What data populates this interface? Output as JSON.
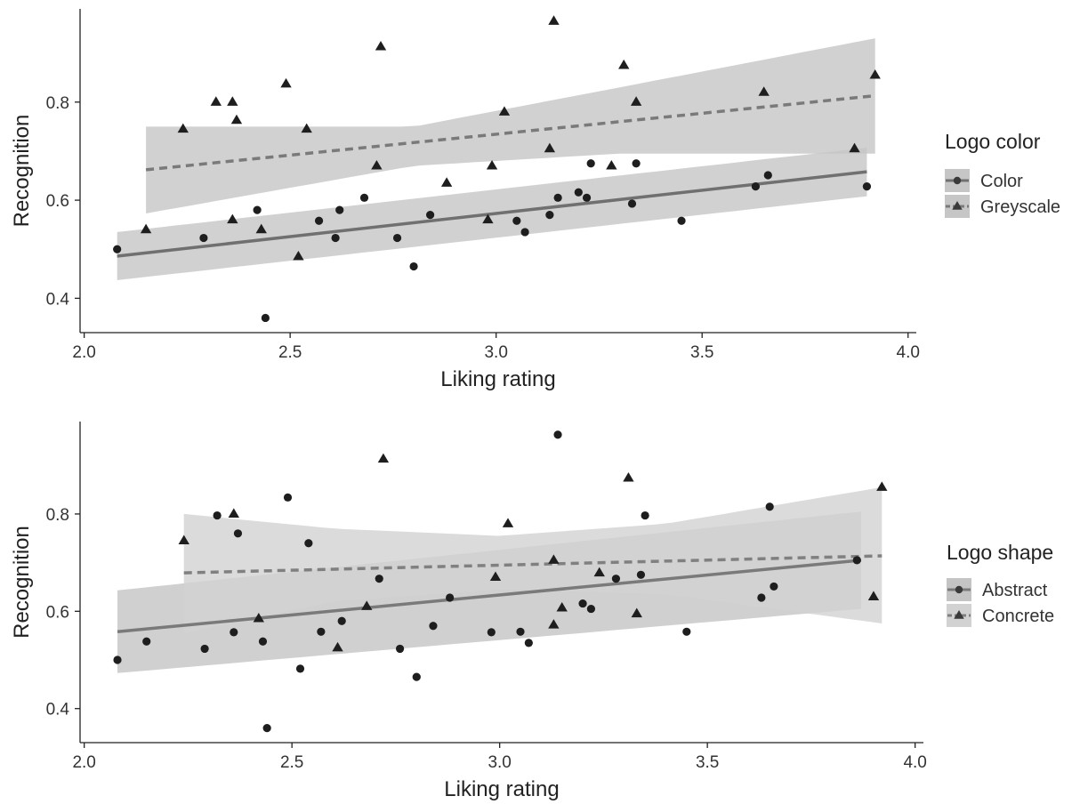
{
  "chart_data": [
    {
      "type": "scatter",
      "title": "",
      "xlabel": "Liking rating",
      "ylabel": "Recognition",
      "xlim": [
        1.99,
        4.02
      ],
      "ylim": [
        0.33,
        0.99
      ],
      "xticks": [
        2.0,
        2.5,
        3.0,
        3.5,
        4.0
      ],
      "xtick_labels": [
        "2.0",
        "2.5",
        "3.0",
        "3.5",
        "4.0"
      ],
      "yticks": [
        0.4,
        0.6,
        0.8
      ],
      "ytick_labels": [
        "0.4",
        "0.6",
        "0.8"
      ],
      "grid": false,
      "legend": {
        "title": "Logo color",
        "placement": "right"
      },
      "series": [
        {
          "name": "Color",
          "marker": "circle",
          "line_style": "solid",
          "line_color": "#707070",
          "band_color": "#c6c6c6",
          "fit": {
            "x": [
              2.08,
              3.9
            ],
            "y": [
              0.486,
              0.658
            ]
          },
          "band": {
            "x": [
              2.08,
              3.9
            ],
            "upper": [
              0.535,
              0.707
            ],
            "lower": [
              0.437,
              0.608
            ]
          },
          "points": [
            {
              "x": 2.08,
              "y": 0.5
            },
            {
              "x": 2.29,
              "y": 0.523
            },
            {
              "x": 2.42,
              "y": 0.58
            },
            {
              "x": 2.44,
              "y": 0.36
            },
            {
              "x": 2.57,
              "y": 0.558
            },
            {
              "x": 2.61,
              "y": 0.523
            },
            {
              "x": 2.62,
              "y": 0.58
            },
            {
              "x": 2.68,
              "y": 0.605
            },
            {
              "x": 2.76,
              "y": 0.523
            },
            {
              "x": 2.8,
              "y": 0.465
            },
            {
              "x": 2.84,
              "y": 0.57
            },
            {
              "x": 3.05,
              "y": 0.558
            },
            {
              "x": 3.07,
              "y": 0.535
            },
            {
              "x": 3.13,
              "y": 0.57
            },
            {
              "x": 3.15,
              "y": 0.605
            },
            {
              "x": 3.2,
              "y": 0.616
            },
            {
              "x": 3.22,
              "y": 0.605
            },
            {
              "x": 3.23,
              "y": 0.675
            },
            {
              "x": 3.33,
              "y": 0.593
            },
            {
              "x": 3.34,
              "y": 0.675
            },
            {
              "x": 3.45,
              "y": 0.558
            },
            {
              "x": 3.63,
              "y": 0.628
            },
            {
              "x": 3.66,
              "y": 0.651
            },
            {
              "x": 3.9,
              "y": 0.628
            }
          ]
        },
        {
          "name": "Greyscale",
          "marker": "triangle",
          "line_style": "dashed",
          "line_color": "#7a7a7a",
          "band_color": "#c6c6c6",
          "fit": {
            "x": [
              2.15,
              3.92
            ],
            "y": [
              0.662,
              0.813
            ]
          },
          "band": {
            "x": [
              2.15,
              2.8,
              3.3,
              3.92
            ],
            "upper": [
              0.75,
              0.75,
              0.83,
              0.93
            ],
            "lower": [
              0.573,
              0.67,
              0.695,
              0.695
            ]
          },
          "points": [
            {
              "x": 2.15,
              "y": 0.54
            },
            {
              "x": 2.24,
              "y": 0.745
            },
            {
              "x": 2.32,
              "y": 0.8
            },
            {
              "x": 2.36,
              "y": 0.8
            },
            {
              "x": 2.36,
              "y": 0.56
            },
            {
              "x": 2.37,
              "y": 0.763
            },
            {
              "x": 2.43,
              "y": 0.54
            },
            {
              "x": 2.49,
              "y": 0.837
            },
            {
              "x": 2.52,
              "y": 0.485
            },
            {
              "x": 2.54,
              "y": 0.745
            },
            {
              "x": 2.71,
              "y": 0.67
            },
            {
              "x": 2.72,
              "y": 0.913
            },
            {
              "x": 2.88,
              "y": 0.635
            },
            {
              "x": 2.98,
              "y": 0.56
            },
            {
              "x": 2.99,
              "y": 0.67
            },
            {
              "x": 3.02,
              "y": 0.78
            },
            {
              "x": 3.13,
              "y": 0.705
            },
            {
              "x": 3.14,
              "y": 0.965
            },
            {
              "x": 3.28,
              "y": 0.67
            },
            {
              "x": 3.31,
              "y": 0.875
            },
            {
              "x": 3.34,
              "y": 0.8
            },
            {
              "x": 3.65,
              "y": 0.82
            },
            {
              "x": 3.87,
              "y": 0.705
            },
            {
              "x": 3.92,
              "y": 0.855
            }
          ]
        }
      ]
    },
    {
      "type": "scatter",
      "title": "",
      "xlabel": "Liking rating",
      "ylabel": "Recognition",
      "xlim": [
        1.99,
        4.02
      ],
      "ylim": [
        0.33,
        0.99
      ],
      "xticks": [
        2.0,
        2.5,
        3.0,
        3.5,
        4.0
      ],
      "xtick_labels": [
        "2.0",
        "2.5",
        "3.0",
        "3.5",
        "4.0"
      ],
      "yticks": [
        0.4,
        0.6,
        0.8
      ],
      "ytick_labels": [
        "0.4",
        "0.6",
        "0.8"
      ],
      "grid": false,
      "legend": {
        "title": "Logo shape",
        "placement": "right"
      },
      "series": [
        {
          "name": "Abstract",
          "marker": "circle",
          "line_style": "solid",
          "line_color": "#7a7a7a",
          "band_color": "#c4c4c4",
          "fit": {
            "x": [
              2.08,
              3.87
            ],
            "y": [
              0.558,
              0.705
            ]
          },
          "band": {
            "x": [
              2.08,
              3.87
            ],
            "upper": [
              0.643,
              0.805
            ],
            "lower": [
              0.473,
              0.605
            ]
          },
          "points": [
            {
              "x": 2.08,
              "y": 0.5
            },
            {
              "x": 2.15,
              "y": 0.538
            },
            {
              "x": 2.29,
              "y": 0.523
            },
            {
              "x": 2.32,
              "y": 0.797
            },
            {
              "x": 2.36,
              "y": 0.557
            },
            {
              "x": 2.37,
              "y": 0.76
            },
            {
              "x": 2.43,
              "y": 0.538
            },
            {
              "x": 2.44,
              "y": 0.36
            },
            {
              "x": 2.49,
              "y": 0.834
            },
            {
              "x": 2.52,
              "y": 0.482
            },
            {
              "x": 2.54,
              "y": 0.74
            },
            {
              "x": 2.57,
              "y": 0.558
            },
            {
              "x": 2.62,
              "y": 0.58
            },
            {
              "x": 2.71,
              "y": 0.667
            },
            {
              "x": 2.76,
              "y": 0.523
            },
            {
              "x": 2.8,
              "y": 0.465
            },
            {
              "x": 2.84,
              "y": 0.57
            },
            {
              "x": 2.88,
              "y": 0.628
            },
            {
              "x": 2.98,
              "y": 0.557
            },
            {
              "x": 3.05,
              "y": 0.558
            },
            {
              "x": 3.07,
              "y": 0.535
            },
            {
              "x": 3.14,
              "y": 0.963
            },
            {
              "x": 3.2,
              "y": 0.616
            },
            {
              "x": 3.22,
              "y": 0.605
            },
            {
              "x": 3.28,
              "y": 0.667
            },
            {
              "x": 3.34,
              "y": 0.675
            },
            {
              "x": 3.35,
              "y": 0.797
            },
            {
              "x": 3.45,
              "y": 0.558
            },
            {
              "x": 3.63,
              "y": 0.628
            },
            {
              "x": 3.65,
              "y": 0.815
            },
            {
              "x": 3.66,
              "y": 0.651
            },
            {
              "x": 3.86,
              "y": 0.705
            }
          ]
        },
        {
          "name": "Concrete",
          "marker": "triangle",
          "line_style": "dashed",
          "line_color": "#808080",
          "band_color": "#d2d2d2",
          "fit": {
            "x": [
              2.24,
              3.92
            ],
            "y": [
              0.679,
              0.714
            ]
          },
          "band": {
            "x": [
              2.24,
              2.6,
              3.0,
              3.4,
              3.92
            ],
            "upper": [
              0.8,
              0.77,
              0.755,
              0.78,
              0.855
            ],
            "lower": [
              0.555,
              0.62,
              0.645,
              0.635,
              0.575
            ]
          },
          "points": [
            {
              "x": 2.24,
              "y": 0.745
            },
            {
              "x": 2.36,
              "y": 0.8
            },
            {
              "x": 2.42,
              "y": 0.585
            },
            {
              "x": 2.61,
              "y": 0.525
            },
            {
              "x": 2.68,
              "y": 0.61
            },
            {
              "x": 2.72,
              "y": 0.913
            },
            {
              "x": 2.99,
              "y": 0.67
            },
            {
              "x": 3.02,
              "y": 0.78
            },
            {
              "x": 3.13,
              "y": 0.705
            },
            {
              "x": 3.13,
              "y": 0.572
            },
            {
              "x": 3.15,
              "y": 0.607
            },
            {
              "x": 3.24,
              "y": 0.679
            },
            {
              "x": 3.31,
              "y": 0.874
            },
            {
              "x": 3.33,
              "y": 0.595
            },
            {
              "x": 3.9,
              "y": 0.63
            },
            {
              "x": 3.92,
              "y": 0.855
            }
          ]
        }
      ]
    }
  ]
}
